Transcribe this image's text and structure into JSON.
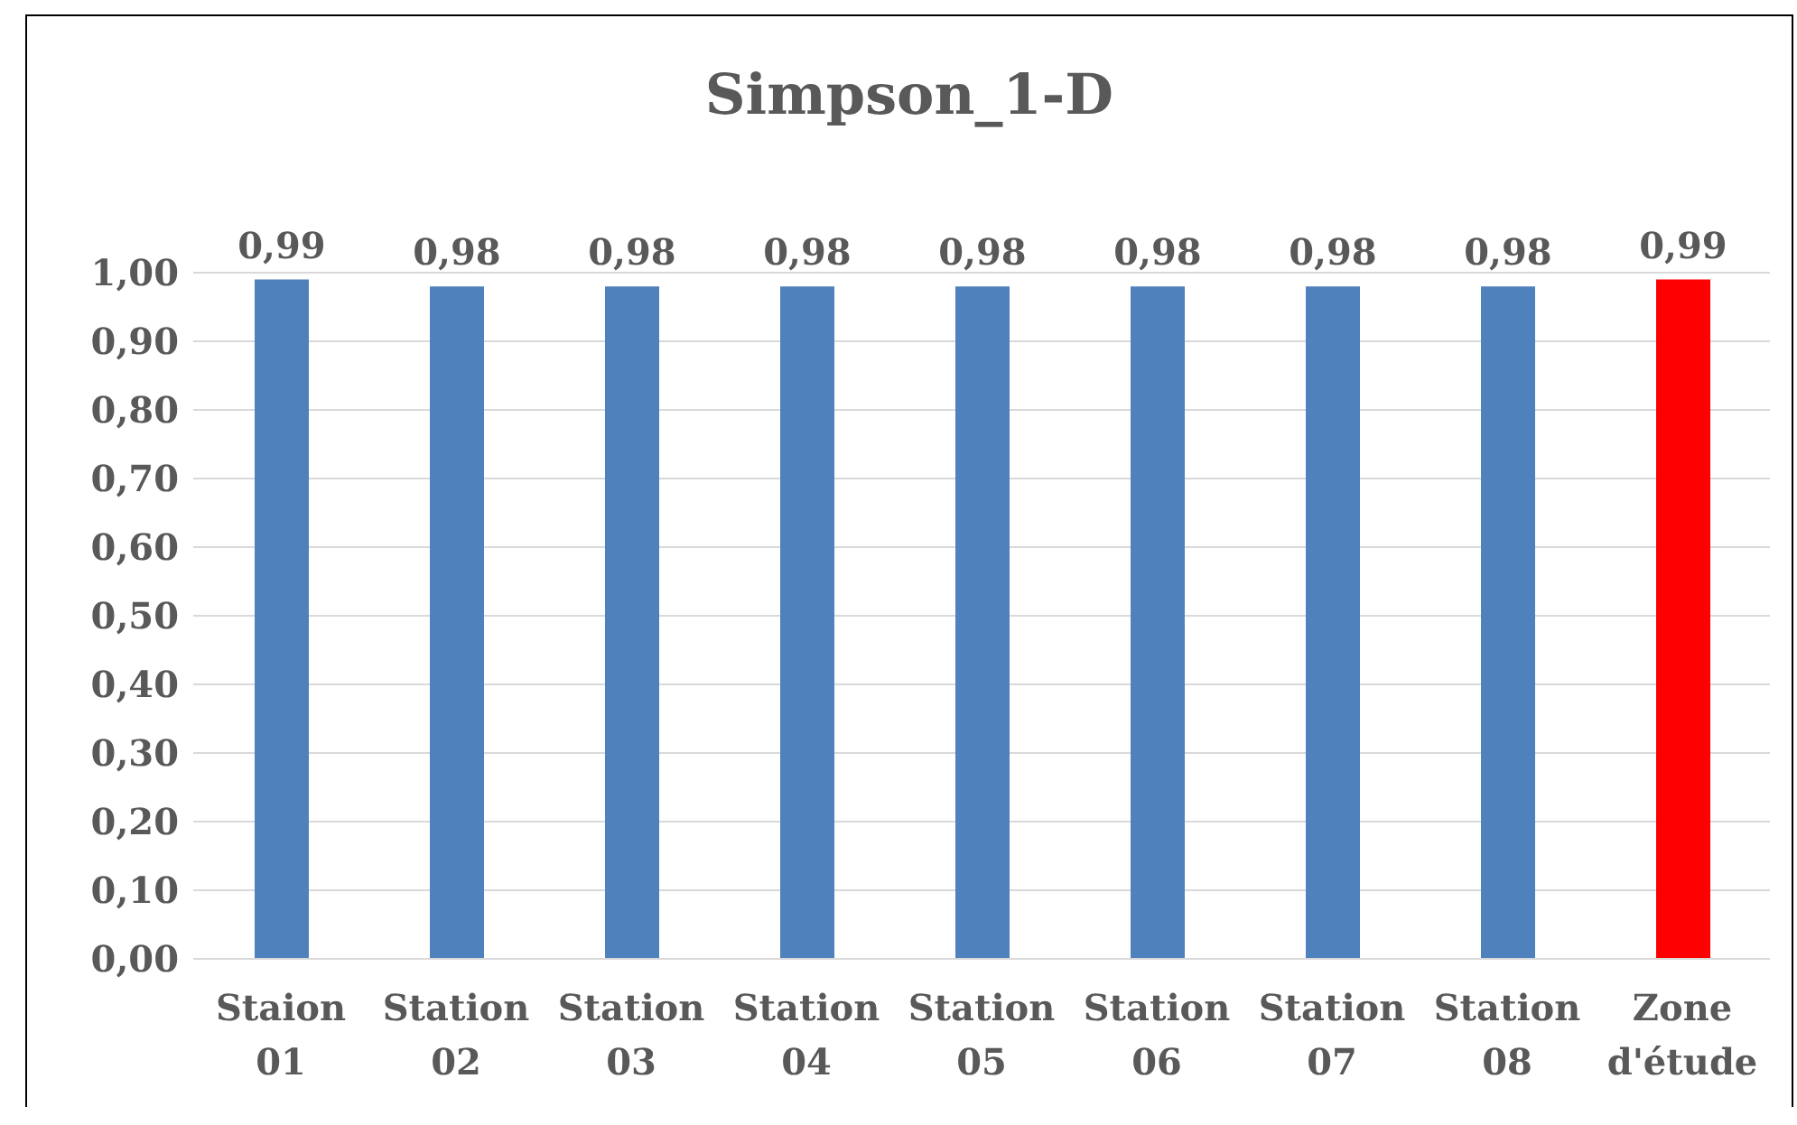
{
  "chart_data": {
    "type": "bar",
    "title": "Simpson_1-D",
    "categories": [
      "Staion 01",
      "Station 02",
      "Station 03",
      "Station 04",
      "Station 05",
      "Station 06",
      "Station 07",
      "Station 08",
      "Zone d'étude"
    ],
    "values": [
      0.99,
      0.98,
      0.98,
      0.98,
      0.98,
      0.98,
      0.98,
      0.98,
      0.99
    ],
    "value_labels": [
      "0,99",
      "0,98",
      "0,98",
      "0,98",
      "0,98",
      "0,98",
      "0,98",
      "0,98",
      "0,99"
    ],
    "colors": [
      "#4f81bd",
      "#4f81bd",
      "#4f81bd",
      "#4f81bd",
      "#4f81bd",
      "#4f81bd",
      "#4f81bd",
      "#4f81bd",
      "#ff0000"
    ],
    "ylim": [
      0,
      1
    ],
    "yticks": [
      {
        "value": 0,
        "label": "0,00"
      },
      {
        "value": 0.1,
        "label": "0,10"
      },
      {
        "value": 0.2,
        "label": "0,20"
      },
      {
        "value": 0.3,
        "label": "0,30"
      },
      {
        "value": 0.4,
        "label": "0,40"
      },
      {
        "value": 0.5,
        "label": "0,50"
      },
      {
        "value": 0.6,
        "label": "0,60"
      },
      {
        "value": 0.7,
        "label": "0,70"
      },
      {
        "value": 0.8,
        "label": "0,80"
      },
      {
        "value": 0.9,
        "label": "0,90"
      },
      {
        "value": 1,
        "label": "1,00"
      }
    ],
    "grid": "y",
    "legend": false
  }
}
